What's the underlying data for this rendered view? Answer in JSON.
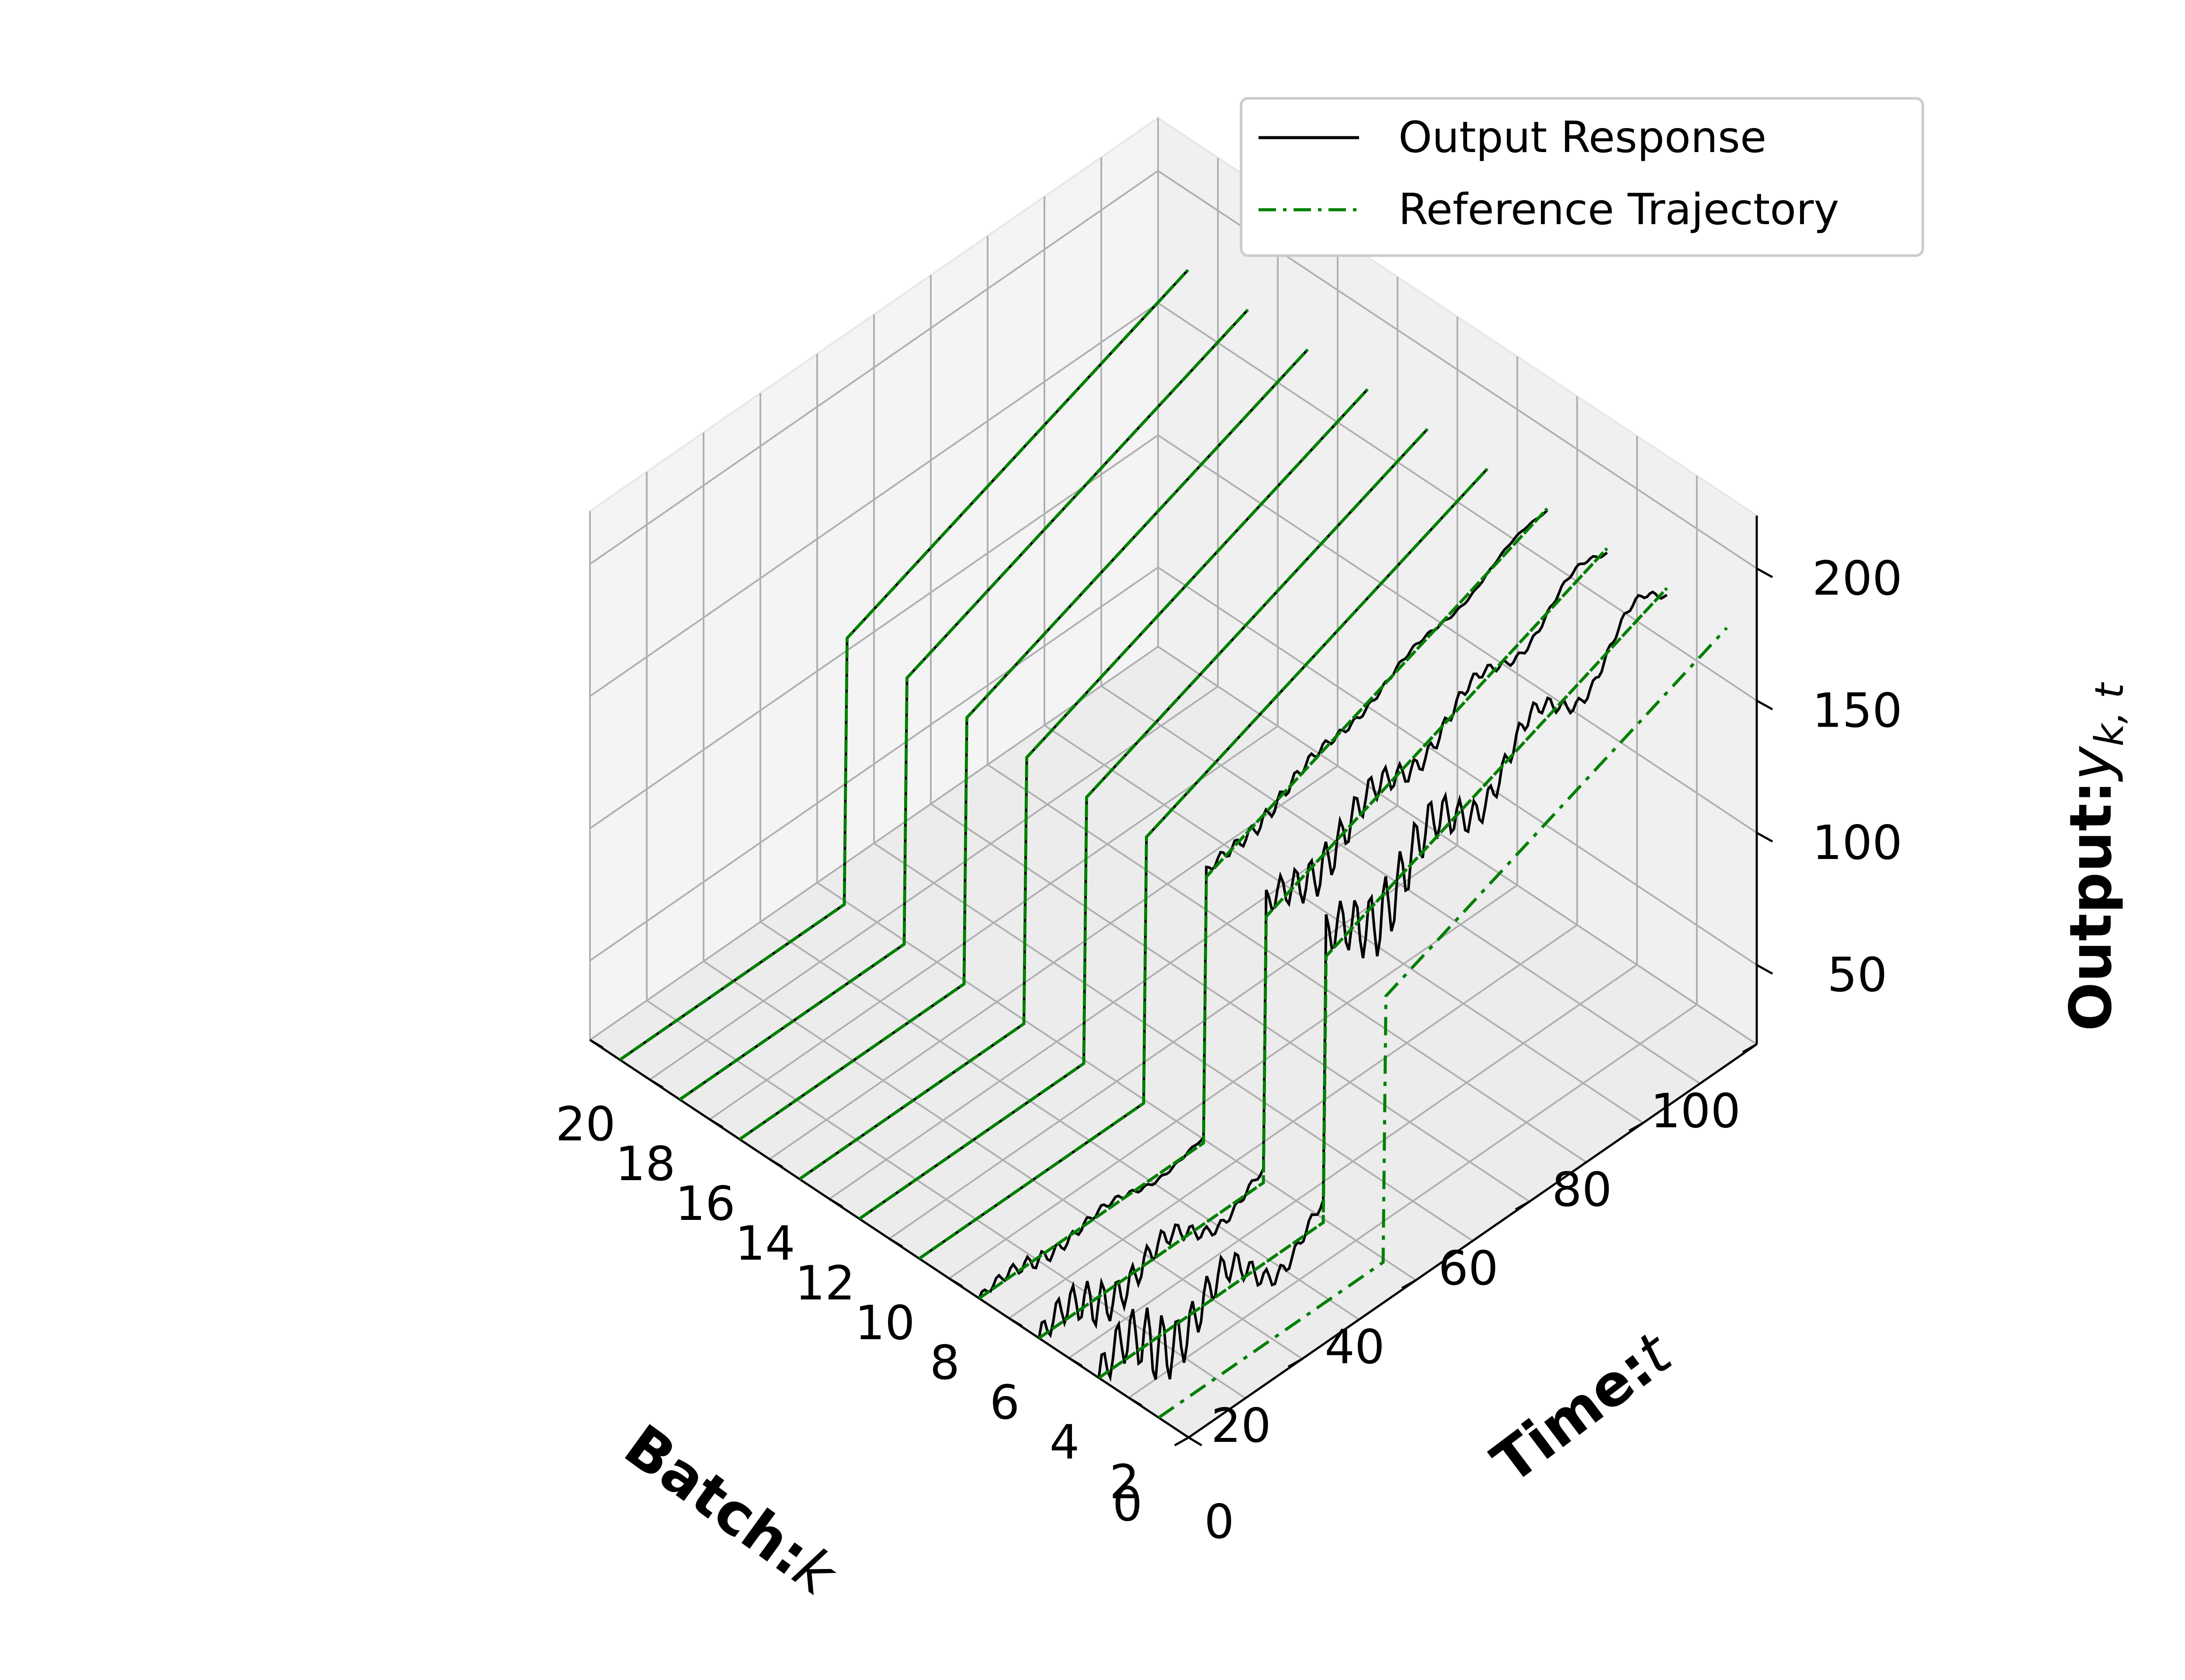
{
  "chart_data": {
    "type": "line3d",
    "legend": {
      "entries": [
        {
          "label": "Output Response",
          "color": "#000000",
          "style": "solid"
        },
        {
          "label": "Reference Trajectory",
          "color": "#008000",
          "style": "dashdot"
        }
      ],
      "placement": "top-right"
    },
    "axes": {
      "x": {
        "label": "Batch:",
        "label_math": "k",
        "ticks": [
          "0",
          "2",
          "4",
          "6",
          "8",
          "10",
          "12",
          "14",
          "16",
          "18",
          "20"
        ],
        "range": [
          0,
          20
        ]
      },
      "y": {
        "label": "Time:",
        "label_math": "t",
        "ticks": [
          "0",
          "20",
          "40",
          "60",
          "80",
          "100"
        ],
        "range": [
          0,
          100
        ]
      },
      "z": {
        "label": "Output:",
        "label_math": "y",
        "label_sub": "k, t",
        "ticks": [
          "50",
          "100",
          "150",
          "200"
        ],
        "range": [
          20,
          220
        ]
      }
    },
    "grid": true,
    "batches": [
      1,
      3,
      5,
      7,
      9,
      11,
      13,
      15,
      17,
      19
    ],
    "reference": {
      "description_levels": "piecewise: 20 for t<41, then ramps from 120 at t=41 linearly to 170 at t=100",
      "t_step": 40,
      "low_level": 20,
      "high_start": 120,
      "high_end": 170
    },
    "series": [
      {
        "batch": 1,
        "type": "reference_only"
      },
      {
        "batch": 3,
        "type": "output_oscillatory_high"
      },
      {
        "batch": 5,
        "type": "output_oscillatory"
      },
      {
        "batch": 7,
        "type": "output_mild"
      },
      {
        "batch": 9,
        "type": "output_tracking"
      },
      {
        "batch": 11,
        "type": "output_tracking"
      },
      {
        "batch": 13,
        "type": "output_tracking"
      },
      {
        "batch": 15,
        "type": "output_tracking"
      },
      {
        "batch": 17,
        "type": "output_tracking"
      },
      {
        "batch": 19,
        "type": "output_tracking"
      }
    ],
    "colors": {
      "output": "#000000",
      "reference": "#008000",
      "pane": "#f2f2f2",
      "grid": "#b0b0b0"
    }
  }
}
